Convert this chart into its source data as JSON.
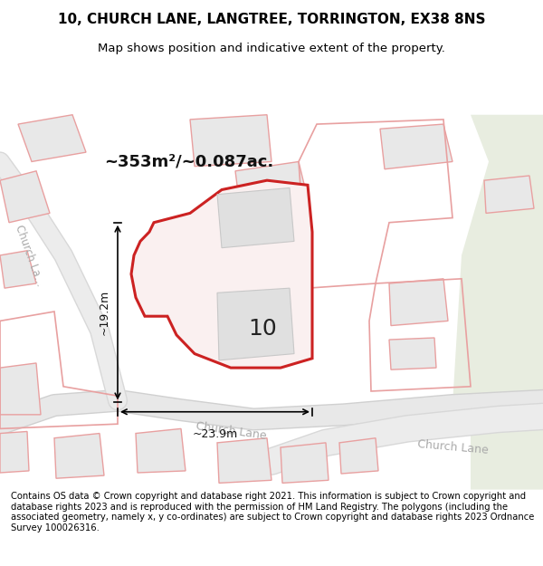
{
  "title_line1": "10, CHURCH LANE, LANGTREE, TORRINGTON, EX38 8NS",
  "title_line2": "Map shows position and indicative extent of the property.",
  "area_text": "~353m²/~0.087ac.",
  "label_10": "10",
  "dim_vertical": "~19.2m",
  "dim_horizontal": "~23.9m",
  "road_label1": "Church Lane",
  "road_label2": "Church Lane",
  "road_label3": "Church L",
  "footer": "Contains OS data © Crown copyright and database right 2021. This information is subject to Crown copyright and database rights 2023 and is reproduced with the permission of HM Land Registry. The polygons (including the associated geometry, namely x, y co-ordinates) are subject to Crown copyright and database rights 2023 Ordnance Survey 100026316.",
  "bg_color": "#ffffff",
  "map_bg": "#f8f8f8",
  "road_color": "#e8e8e8",
  "building_fill": "#e0e0e0",
  "building_stroke": "#e8a0a0",
  "highlight_fill": "#f0e8e8",
  "highlight_stroke": "#cc2222",
  "green_bg": "#e8f0e0",
  "footer_bg": "#f5f5f5"
}
